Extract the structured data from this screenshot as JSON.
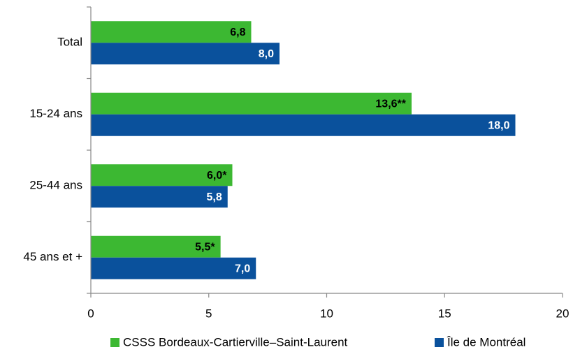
{
  "chart_data": {
    "type": "barh",
    "categories": [
      "Total",
      "15-24 ans",
      "25-44 ans",
      "45 ans et +"
    ],
    "series": [
      {
        "name": "CSSS Bordeaux-Cartierville–Saint-Laurent",
        "color": "#3cb832",
        "values": [
          6.8,
          13.6,
          6.0,
          5.5
        ],
        "value_labels": [
          "6,8",
          "13,6**",
          "6,0*",
          "5,5*"
        ]
      },
      {
        "name": "Île de Montréal",
        "color": "#0a519c",
        "values": [
          8.0,
          18.0,
          5.8,
          7.0
        ],
        "value_labels": [
          "8,0",
          "18,0",
          "5,8",
          "7,0"
        ]
      }
    ],
    "xlim": [
      0,
      20
    ],
    "xticks": [
      0,
      5,
      10,
      15,
      20
    ],
    "grid": false
  }
}
